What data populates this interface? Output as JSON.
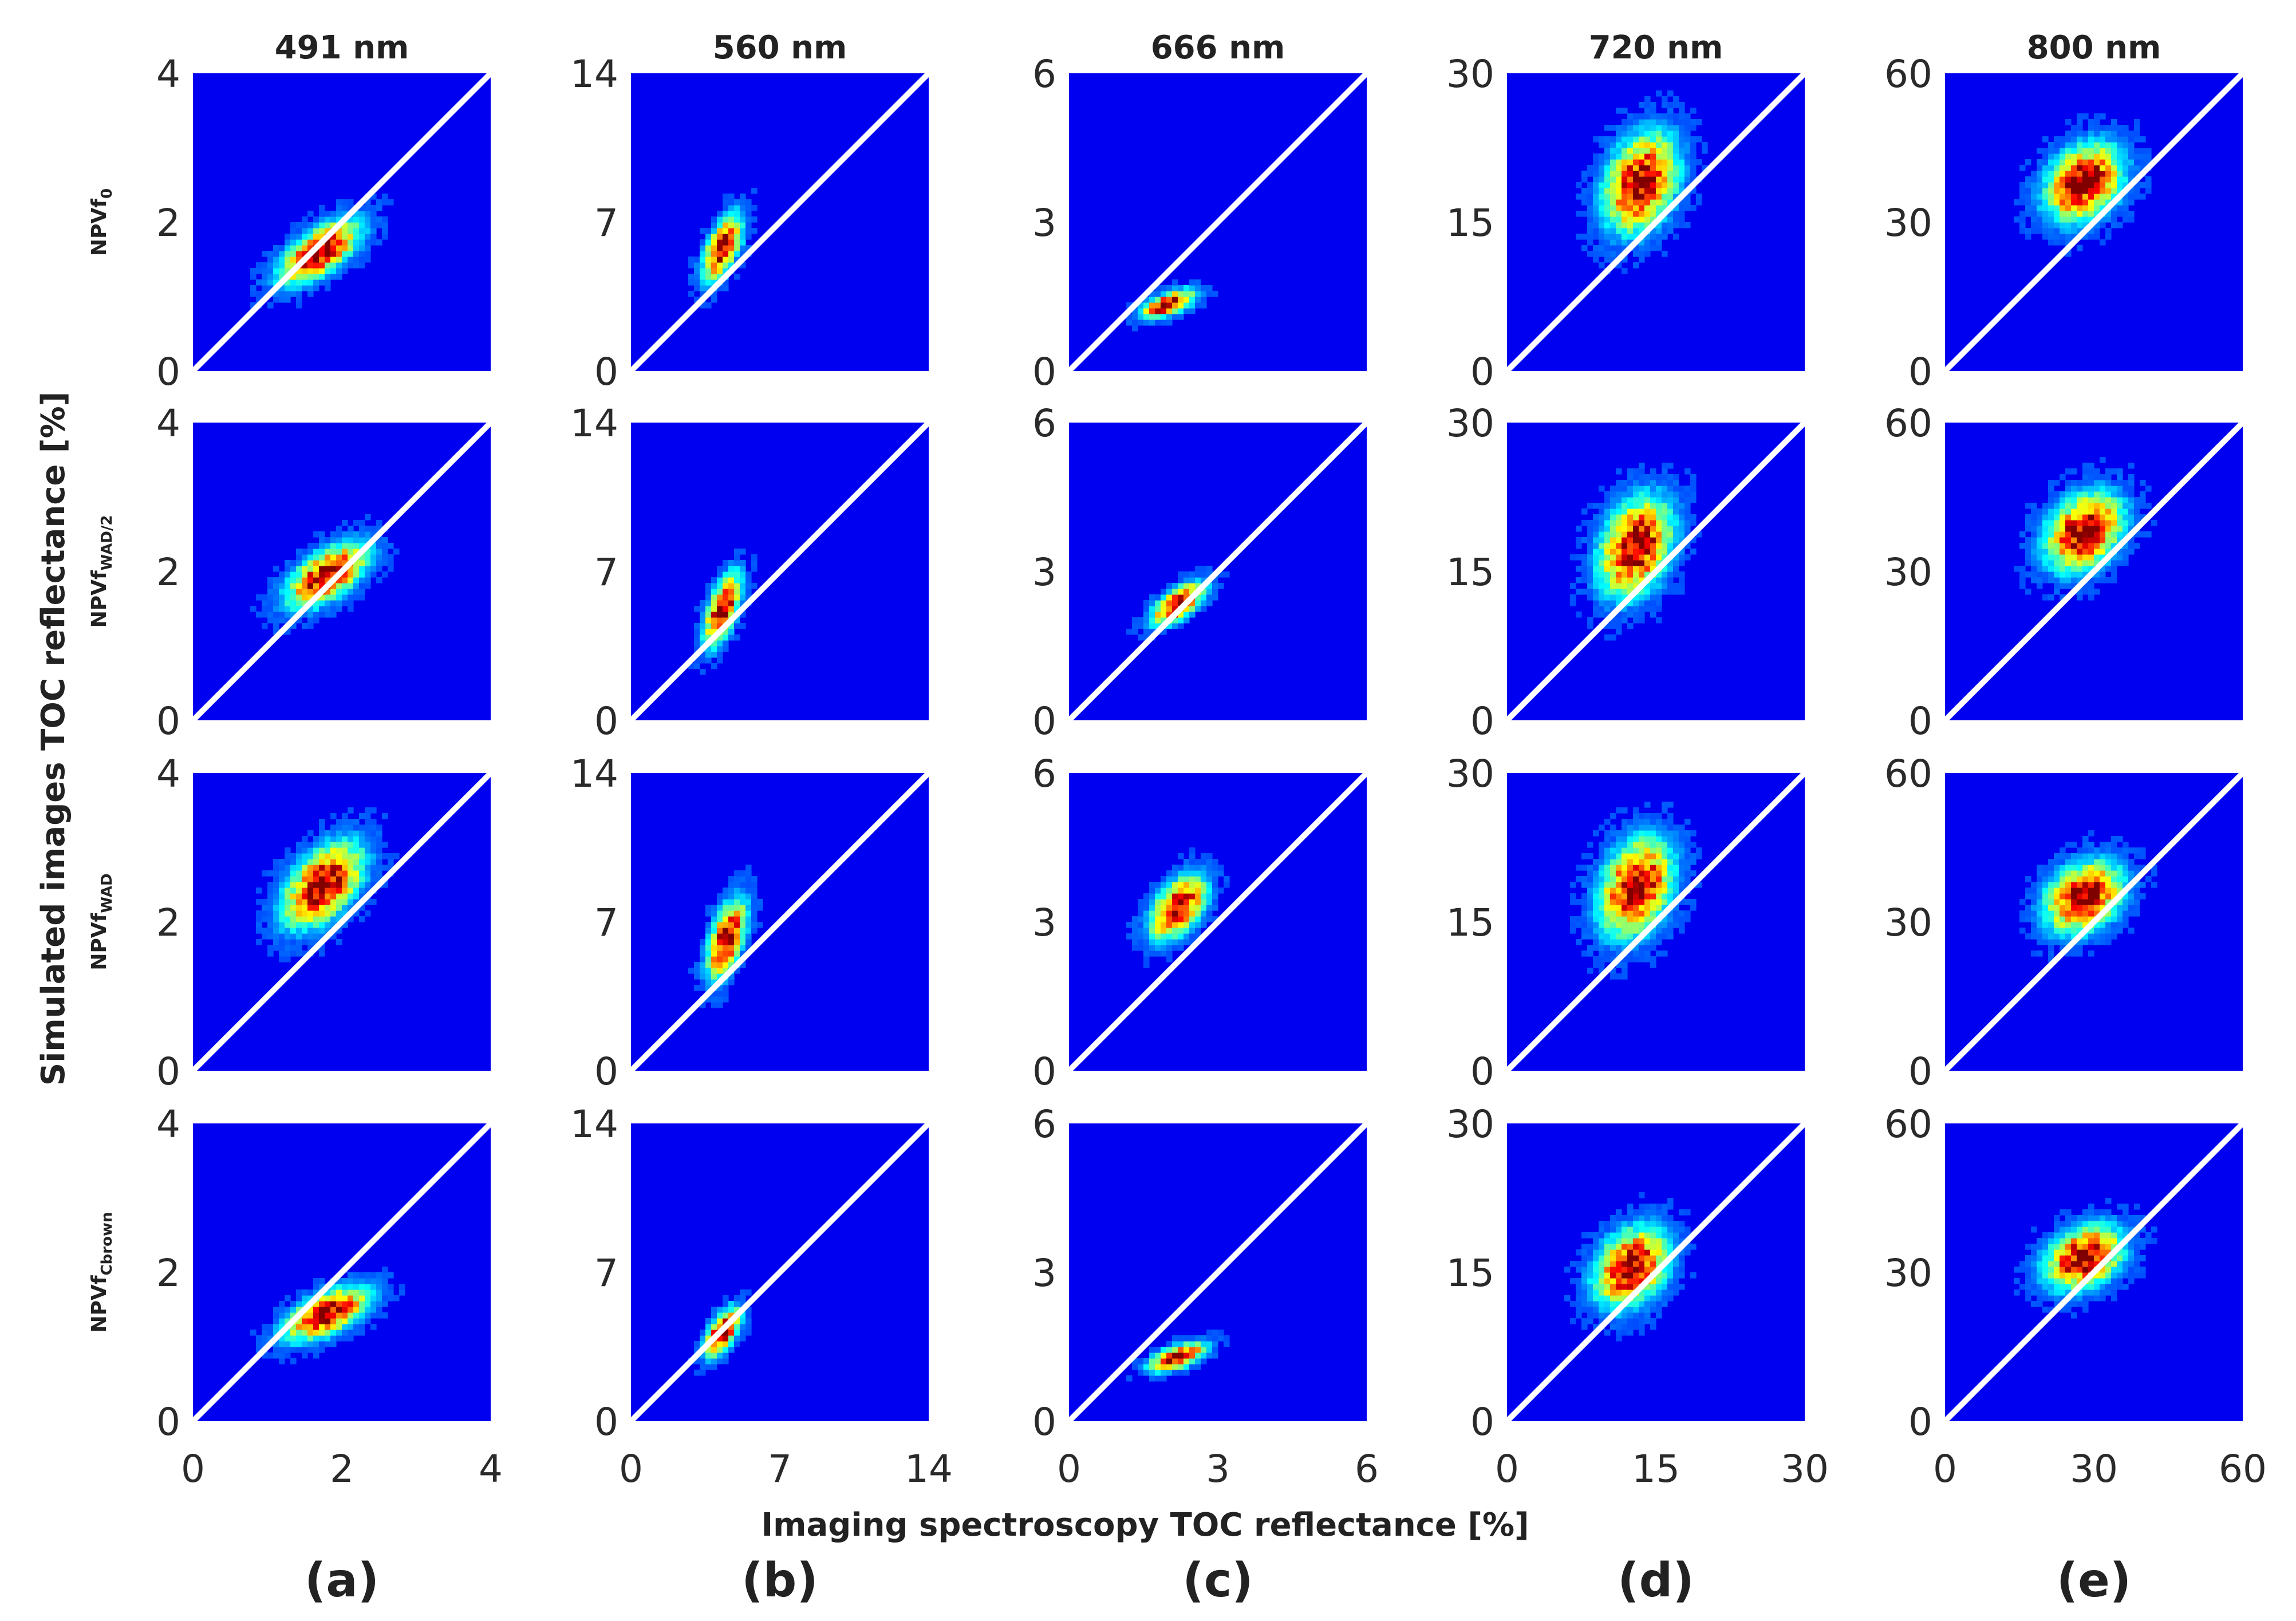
{
  "chart_data": {
    "type": "heatmap",
    "subtype": "2D density scatter grid with 1:1 line",
    "xlabel": "Imaging spectroscopy TOC reflectance [%]",
    "ylabel": "Simulated images TOC reflectance [%]",
    "colormap": "jet",
    "columns": [
      {
        "title": "491 nm",
        "panel_label": "(a)",
        "lim": [
          0,
          4
        ],
        "ticks": [
          "0",
          "2",
          "4"
        ]
      },
      {
        "title": "560 nm",
        "panel_label": "(b)",
        "lim": [
          0,
          14
        ],
        "ticks": [
          "0",
          "7",
          "14"
        ]
      },
      {
        "title": "666 nm",
        "panel_label": "(c)",
        "lim": [
          0,
          6
        ],
        "ticks": [
          "0",
          "3",
          "6"
        ]
      },
      {
        "title": "720 nm",
        "panel_label": "(d)",
        "lim": [
          0,
          30
        ],
        "ticks": [
          "0",
          "15",
          "30"
        ]
      },
      {
        "title": "800 nm",
        "panel_label": "(e)",
        "lim": [
          0,
          60
        ],
        "ticks": [
          "0",
          "30",
          "60"
        ]
      }
    ],
    "rows": [
      {
        "label_main": "NPVf",
        "label_sub": "0"
      },
      {
        "label_main": "NPVf",
        "label_sub": "WAD/2"
      },
      {
        "label_main": "NPVf",
        "label_sub": "WAD"
      },
      {
        "label_main": "NPVf",
        "label_sub": "Cbrown"
      }
    ],
    "clusters": [
      [
        {
          "cx": 1.7,
          "cy": 1.6,
          "sx": 0.38,
          "sy": 0.3,
          "rho": 0.65
        },
        {
          "cx": 4.3,
          "cy": 5.8,
          "sx": 0.65,
          "sy": 1.1,
          "rho": 0.6
        },
        {
          "cx": 2.0,
          "cy": 1.35,
          "sx": 0.38,
          "sy": 0.2,
          "rho": 0.6
        },
        {
          "cx": 13.5,
          "cy": 19.0,
          "sx": 2.6,
          "sy": 3.5,
          "rho": 0.3
        },
        {
          "cx": 28.0,
          "cy": 38.0,
          "sx": 5.5,
          "sy": 5.5,
          "rho": 0.3
        }
      ],
      [
        {
          "cx": 1.8,
          "cy": 1.95,
          "sx": 0.38,
          "sy": 0.3,
          "rho": 0.6
        },
        {
          "cx": 4.3,
          "cy": 5.2,
          "sx": 0.6,
          "sy": 1.2,
          "rho": 0.6
        },
        {
          "cx": 2.2,
          "cy": 2.35,
          "sx": 0.38,
          "sy": 0.3,
          "rho": 0.65
        },
        {
          "cx": 13.0,
          "cy": 17.5,
          "sx": 2.6,
          "sy": 3.5,
          "rho": 0.3
        },
        {
          "cx": 28.0,
          "cy": 38.0,
          "sx": 5.5,
          "sy": 5.5,
          "rho": 0.3
        }
      ],
      [
        {
          "cx": 1.75,
          "cy": 2.5,
          "sx": 0.38,
          "sy": 0.4,
          "rho": 0.5
        },
        {
          "cx": 4.5,
          "cy": 6.2,
          "sx": 0.65,
          "sy": 1.3,
          "rho": 0.55
        },
        {
          "cx": 2.2,
          "cy": 3.3,
          "sx": 0.4,
          "sy": 0.45,
          "rho": 0.5
        },
        {
          "cx": 13.0,
          "cy": 18.5,
          "sx": 2.6,
          "sy": 3.5,
          "rho": 0.3
        },
        {
          "cx": 28.0,
          "cy": 35.0,
          "sx": 5.5,
          "sy": 5.0,
          "rho": 0.3
        }
      ],
      [
        {
          "cx": 1.8,
          "cy": 1.45,
          "sx": 0.4,
          "sy": 0.25,
          "rho": 0.6
        },
        {
          "cx": 4.3,
          "cy": 4.2,
          "sx": 0.6,
          "sy": 0.8,
          "rho": 0.6
        },
        {
          "cx": 2.2,
          "cy": 1.3,
          "sx": 0.4,
          "sy": 0.2,
          "rho": 0.6
        },
        {
          "cx": 12.5,
          "cy": 15.5,
          "sx": 2.6,
          "sy": 2.8,
          "rho": 0.3
        },
        {
          "cx": 28.0,
          "cy": 33.0,
          "sx": 5.5,
          "sy": 4.5,
          "rho": 0.3
        }
      ]
    ],
    "reference_line": "1:1",
    "grid": false,
    "legend": "none"
  }
}
